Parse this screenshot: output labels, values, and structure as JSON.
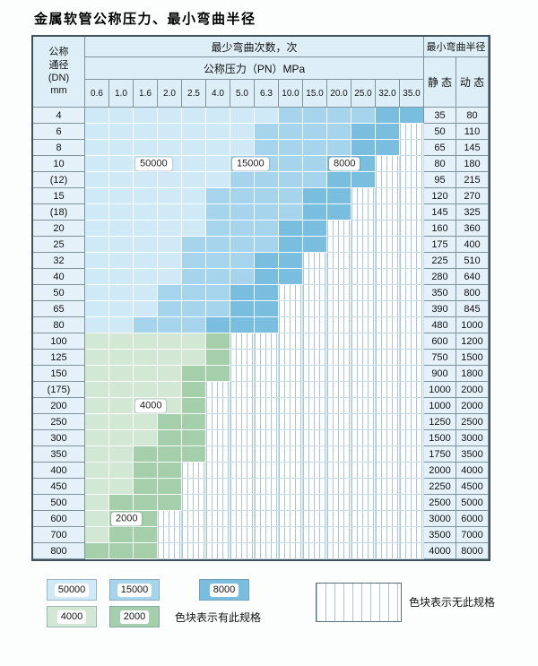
{
  "page_title": "金属软管公称压力、最小弯曲半径",
  "colors": {
    "c50000": "#cfe9f6",
    "c15000": "#a6d4ec",
    "c8000": "#79bede",
    "c4000": "#d3e8d4",
    "c2000": "#a5cfaa",
    "stripe": "#a8c6d6",
    "header-bg": "#ddeef7",
    "side-bg": "#e4f1f8",
    "border-dark": "#41525b",
    "border-mid": "#7d929d",
    "border-light": "#c9dde8"
  },
  "table": {
    "header": {
      "dn_lines": [
        "公称",
        "通径",
        "(DN)",
        "mm"
      ],
      "cycles_title": "最少弯曲次数，次",
      "pressure_title": "公称压力（PN）MPa",
      "pressure_columns": [
        "0.6",
        "1.0",
        "1.6",
        "2.0",
        "2.5",
        "4.0",
        "5.0",
        "6.3",
        "10.0",
        "15.0",
        "20.0",
        "25.0",
        "32.0",
        "35.0"
      ],
      "radius_title": "最小弯曲半径",
      "static_label": "静 态",
      "dynamic_label": "动 态"
    },
    "overlay_labels": [
      {
        "text": "50000",
        "row": 3,
        "col": 2
      },
      {
        "text": "15000",
        "row": 3,
        "col": 6
      },
      {
        "text": "8000",
        "row": 3,
        "col": 10
      },
      {
        "text": "4000",
        "row": 18,
        "col": 2
      },
      {
        "text": "2000",
        "row": 25,
        "col": 1
      }
    ],
    "rows": [
      {
        "dn": "4",
        "bands": [
          [
            "50000",
            8
          ],
          [
            "15000",
            4
          ],
          [
            "8000",
            2
          ]
        ],
        "static": "35",
        "dynamic": "80"
      },
      {
        "dn": "6",
        "bands": [
          [
            "50000",
            7
          ],
          [
            "15000",
            4
          ],
          [
            "8000",
            2
          ]
        ],
        "static": "50",
        "dynamic": "110"
      },
      {
        "dn": "8",
        "bands": [
          [
            "50000",
            7
          ],
          [
            "15000",
            4
          ],
          [
            "8000",
            2
          ]
        ],
        "static": "65",
        "dynamic": "145"
      },
      {
        "dn": "10",
        "bands": [
          [
            "50000",
            6
          ],
          [
            "15000",
            4
          ],
          [
            "8000",
            2
          ]
        ],
        "static": "80",
        "dynamic": "180"
      },
      {
        "dn": "(12)",
        "bands": [
          [
            "50000",
            6
          ],
          [
            "15000",
            4
          ],
          [
            "8000",
            2
          ]
        ],
        "static": "95",
        "dynamic": "215"
      },
      {
        "dn": "15",
        "bands": [
          [
            "50000",
            5
          ],
          [
            "15000",
            4
          ],
          [
            "8000",
            2
          ]
        ],
        "static": "120",
        "dynamic": "270"
      },
      {
        "dn": "(18)",
        "bands": [
          [
            "50000",
            5
          ],
          [
            "15000",
            4
          ],
          [
            "8000",
            2
          ]
        ],
        "static": "145",
        "dynamic": "325"
      },
      {
        "dn": "20",
        "bands": [
          [
            "50000",
            5
          ],
          [
            "15000",
            3
          ],
          [
            "8000",
            2
          ]
        ],
        "static": "160",
        "dynamic": "360"
      },
      {
        "dn": "25",
        "bands": [
          [
            "50000",
            4
          ],
          [
            "15000",
            4
          ],
          [
            "8000",
            2
          ]
        ],
        "static": "175",
        "dynamic": "400"
      },
      {
        "dn": "32",
        "bands": [
          [
            "50000",
            4
          ],
          [
            "15000",
            3
          ],
          [
            "8000",
            2
          ]
        ],
        "static": "225",
        "dynamic": "510"
      },
      {
        "dn": "40",
        "bands": [
          [
            "50000",
            4
          ],
          [
            "15000",
            3
          ],
          [
            "8000",
            2
          ]
        ],
        "static": "280",
        "dynamic": "640"
      },
      {
        "dn": "50",
        "bands": [
          [
            "50000",
            3
          ],
          [
            "15000",
            3
          ],
          [
            "8000",
            2
          ]
        ],
        "static": "350",
        "dynamic": "800"
      },
      {
        "dn": "65",
        "bands": [
          [
            "50000",
            3
          ],
          [
            "15000",
            3
          ],
          [
            "8000",
            2
          ]
        ],
        "static": "390",
        "dynamic": "845"
      },
      {
        "dn": "80",
        "bands": [
          [
            "50000",
            2
          ],
          [
            "15000",
            3
          ],
          [
            "8000",
            3
          ]
        ],
        "static": "480",
        "dynamic": "1000"
      },
      {
        "dn": "100",
        "bands": [
          [
            "4000",
            5
          ],
          [
            "2000",
            1
          ]
        ],
        "static": "600",
        "dynamic": "1200"
      },
      {
        "dn": "125",
        "bands": [
          [
            "4000",
            5
          ],
          [
            "2000",
            1
          ]
        ],
        "static": "750",
        "dynamic": "1500"
      },
      {
        "dn": "150",
        "bands": [
          [
            "4000",
            4
          ],
          [
            "2000",
            2
          ]
        ],
        "static": "900",
        "dynamic": "1800"
      },
      {
        "dn": "(175)",
        "bands": [
          [
            "4000",
            4
          ],
          [
            "2000",
            1
          ]
        ],
        "static": "1000",
        "dynamic": "2000"
      },
      {
        "dn": "200",
        "bands": [
          [
            "4000",
            4
          ],
          [
            "2000",
            1
          ]
        ],
        "static": "1000",
        "dynamic": "2000"
      },
      {
        "dn": "250",
        "bands": [
          [
            "4000",
            3
          ],
          [
            "2000",
            2
          ]
        ],
        "static": "1250",
        "dynamic": "2500"
      },
      {
        "dn": "300",
        "bands": [
          [
            "4000",
            3
          ],
          [
            "2000",
            2
          ]
        ],
        "static": "1500",
        "dynamic": "3000"
      },
      {
        "dn": "350",
        "bands": [
          [
            "4000",
            2
          ],
          [
            "2000",
            3
          ]
        ],
        "static": "1750",
        "dynamic": "3500"
      },
      {
        "dn": "400",
        "bands": [
          [
            "4000",
            2
          ],
          [
            "2000",
            2
          ]
        ],
        "static": "2000",
        "dynamic": "4000"
      },
      {
        "dn": "450",
        "bands": [
          [
            "4000",
            2
          ],
          [
            "2000",
            2
          ]
        ],
        "static": "2250",
        "dynamic": "4500"
      },
      {
        "dn": "500",
        "bands": [
          [
            "4000",
            1
          ],
          [
            "2000",
            3
          ]
        ],
        "static": "2500",
        "dynamic": "5000"
      },
      {
        "dn": "600",
        "bands": [
          [
            "4000",
            1
          ],
          [
            "2000",
            2
          ]
        ],
        "static": "3000",
        "dynamic": "6000"
      },
      {
        "dn": "700",
        "bands": [
          [
            "4000",
            1
          ],
          [
            "2000",
            2
          ]
        ],
        "static": "3500",
        "dynamic": "7000"
      },
      {
        "dn": "800",
        "bands": [
          [
            "2000",
            3
          ]
        ],
        "static": "4000",
        "dynamic": "8000"
      }
    ]
  },
  "legend": {
    "items": [
      {
        "label": "50000"
      },
      {
        "label": "15000"
      },
      {
        "label": "8000"
      },
      {
        "label": "4000"
      },
      {
        "label": "2000"
      }
    ],
    "available_text": "色块表示有此规格",
    "unavailable_text": "色块表示无此规格"
  }
}
